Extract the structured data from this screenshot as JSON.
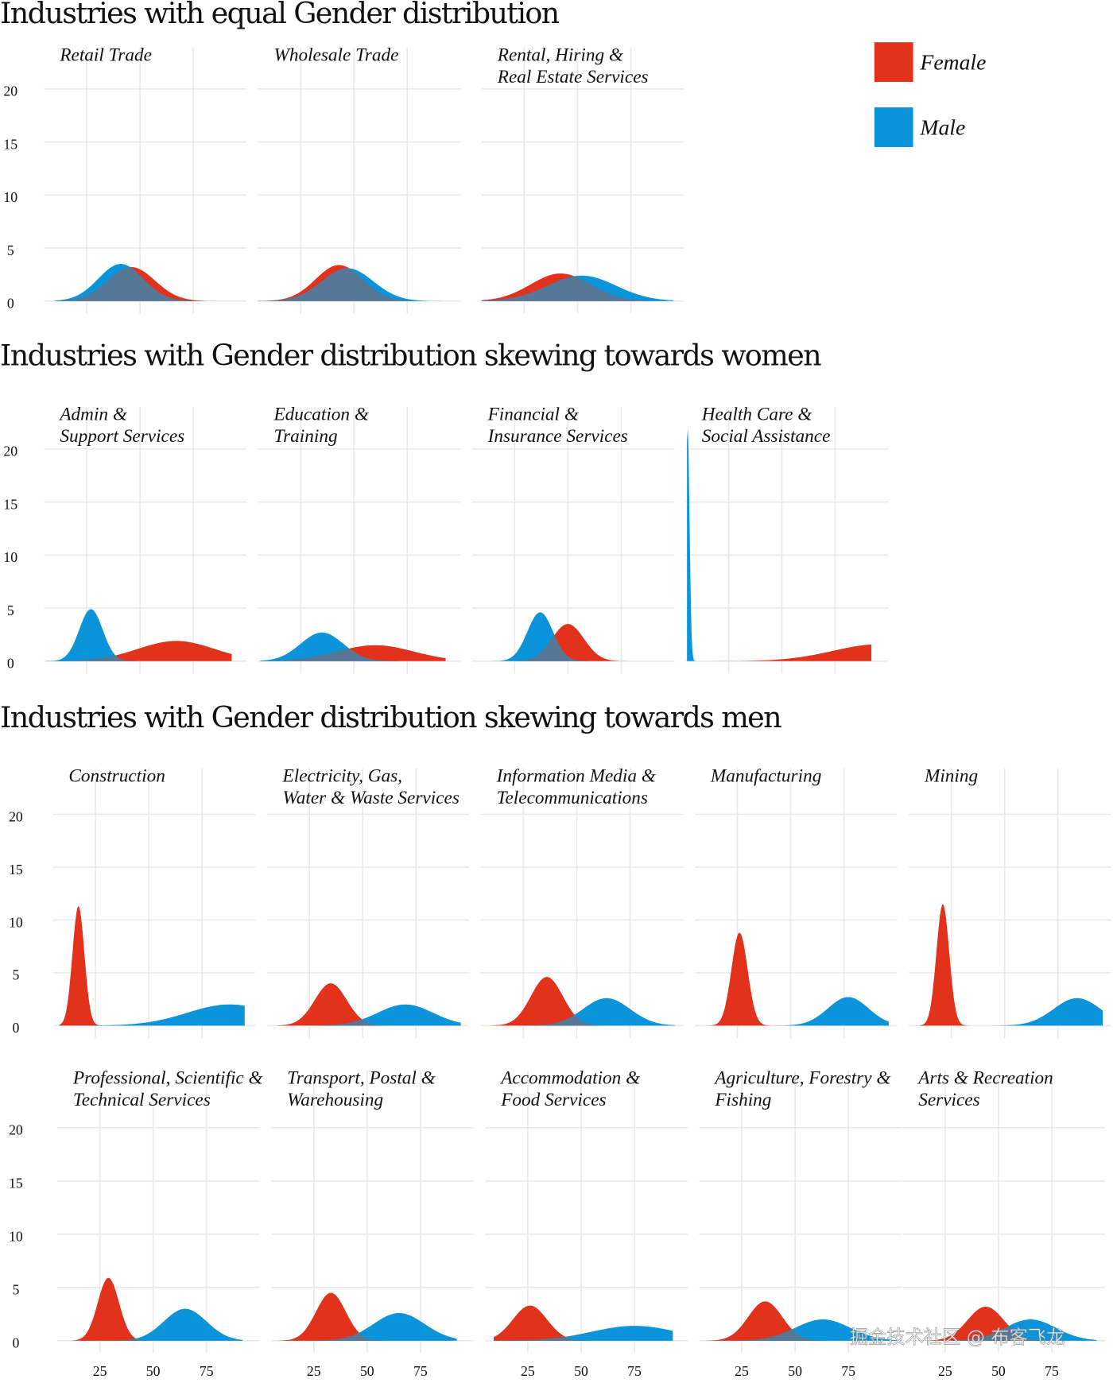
{
  "chart_data": {
    "type": "area",
    "xlabel": "",
    "ylabel": "",
    "xlim": [
      5,
      100
    ],
    "ylim": [
      0,
      20
    ],
    "x_ticks": [
      "25",
      "50",
      "75"
    ],
    "x_tick_values": [
      25,
      50,
      75
    ],
    "y_ticks": [
      "0",
      "5",
      "10",
      "15",
      "20"
    ],
    "y_tick_values": [
      0,
      5,
      10,
      15,
      20
    ],
    "grid": true,
    "legend": {
      "placement": "top-right",
      "items": [
        {
          "label": "Female",
          "color": "#e2321b"
        },
        {
          "label": "Male",
          "color": "#0b94da"
        }
      ],
      "overlap_color": "#567896"
    },
    "sections": [
      {
        "title": "Industries with equal Gender distribution",
        "panels": [
          {
            "label": [
              "Retail Trade"
            ],
            "female": {
              "mean": 46,
              "sd": 11,
              "peak": 3.2,
              "range": [
                10,
                88
              ]
            },
            "male": {
              "mean": 41,
              "sd": 10.5,
              "peak": 3.5,
              "range": [
                10,
                88
              ]
            }
          },
          {
            "label": [
              "Wholesale Trade"
            ],
            "female": {
              "mean": 43,
              "sd": 11,
              "peak": 3.4,
              "range": [
                5,
                92
              ]
            },
            "male": {
              "mean": 47,
              "sd": 12,
              "peak": 3.1,
              "range": [
                5,
                92
              ]
            }
          },
          {
            "label": [
              "Rental, Hiring &",
              "Real Estate Services"
            ],
            "female": {
              "mean": 42,
              "sd": 14,
              "peak": 2.6,
              "range": [
                5,
                95
              ]
            },
            "male": {
              "mean": 52,
              "sd": 16,
              "peak": 2.4,
              "range": [
                5,
                95
              ]
            }
          }
        ]
      },
      {
        "title": "Industries with Gender distribution skewing towards women",
        "panels": [
          {
            "label": [
              "Admin &",
              "Support Services"
            ],
            "female": {
              "mean": 67,
              "sd": 18,
              "peak": 1.9,
              "range": [
                6,
                93
              ]
            },
            "male": {
              "mean": 27,
              "sd": 5.5,
              "peak": 4.9,
              "range": [
                6,
                93
              ]
            }
          },
          {
            "label": [
              "Education &",
              "Training"
            ],
            "female": {
              "mean": 60,
              "sd": 18,
              "peak": 1.5,
              "range": [
                6,
                93
              ]
            },
            "male": {
              "mean": 35,
              "sd": 10,
              "peak": 2.7,
              "range": [
                6,
                93
              ]
            }
          },
          {
            "label": [
              "Financial &",
              "Insurance Services"
            ],
            "female": {
              "mean": 50,
              "sd": 7.5,
              "peak": 3.5,
              "range": [
                12,
                90
              ]
            },
            "male": {
              "mean": 37,
              "sd": 6,
              "peak": 4.6,
              "range": [
                12,
                90
              ]
            }
          },
          {
            "label": [
              "Health Care &",
              "Social Assistance"
            ],
            "female": {
              "mean": 96,
              "sd": 22,
              "peak": 1.6,
              "range": [
                5.5,
                92
              ]
            },
            "male": {
              "mean": 5.8,
              "sd": 0.9,
              "peak": 22,
              "range": [
                5.5,
                92
              ]
            }
          }
        ]
      },
      {
        "title": "Industries with Gender distribution skewing towards men",
        "panels": [
          {
            "label": [
              "Construction"
            ],
            "female": {
              "mean": 17,
              "sd": 2.8,
              "peak": 11.3,
              "range": [
                8,
                95
              ]
            },
            "male": {
              "mean": 88,
              "sd": 20,
              "peak": 2.0,
              "range": [
                8,
                95
              ]
            }
          },
          {
            "label": [
              "Electricity, Gas,",
              "Water & Waste Services"
            ],
            "female": {
              "mean": 35,
              "sd": 7.5,
              "peak": 4.0,
              "range": [
                10,
                96
              ]
            },
            "male": {
              "mean": 70,
              "sd": 13,
              "peak": 2.0,
              "range": [
                10,
                96
              ]
            }
          },
          {
            "label": [
              "Information Media &",
              "Telecommunications"
            ],
            "female": {
              "mean": 36,
              "sd": 7.5,
              "peak": 4.6,
              "range": [
                10,
                96
              ]
            },
            "male": {
              "mean": 64,
              "sd": 11,
              "peak": 2.6,
              "range": [
                10,
                96
              ]
            }
          },
          {
            "label": [
              "Manufacturing"
            ],
            "female": {
              "mean": 26,
              "sd": 3.8,
              "peak": 8.8,
              "range": [
                10,
                96
              ]
            },
            "male": {
              "mean": 77,
              "sd": 9.5,
              "peak": 2.7,
              "range": [
                10,
                96
              ]
            }
          },
          {
            "label": [
              "Mining"
            ],
            "female": {
              "mean": 21,
              "sd": 3,
              "peak": 11.5,
              "range": [
                10,
                96
              ]
            },
            "male": {
              "mean": 84,
              "sd": 11,
              "peak": 2.6,
              "range": [
                10,
                96
              ]
            }
          },
          {
            "label": [
              "Professional, Scientific &",
              "Technical Services"
            ],
            "female": {
              "mean": 29,
              "sd": 5,
              "peak": 5.9,
              "range": [
                12,
                92
              ]
            },
            "male": {
              "mean": 65,
              "sd": 10,
              "peak": 3.0,
              "range": [
                12,
                92
              ]
            }
          },
          {
            "label": [
              "Transport, Postal &",
              "Warehousing"
            ],
            "female": {
              "mean": 33,
              "sd": 7,
              "peak": 4.5,
              "range": [
                8,
                92
              ]
            },
            "male": {
              "mean": 65,
              "sd": 12,
              "peak": 2.6,
              "range": [
                8,
                92
              ]
            }
          },
          {
            "label": [
              "Accommodation &",
              "Food Services"
            ],
            "female": {
              "mean": 26,
              "sd": 8,
              "peak": 3.3,
              "range": [
                9,
                93
              ]
            },
            "male": {
              "mean": 75,
              "sd": 20,
              "peak": 1.4,
              "range": [
                9,
                93
              ]
            }
          },
          {
            "label": [
              "Agriculture, Forestry &",
              "Fishing"
            ],
            "female": {
              "mean": 36,
              "sd": 8,
              "peak": 3.7,
              "range": [
                8,
                100
              ]
            },
            "male": {
              "mean": 63,
              "sd": 13,
              "peak": 2.0,
              "range": [
                8,
                100
              ]
            }
          },
          {
            "label": [
              "Arts & Recreation",
              "Services"
            ],
            "female": {
              "mean": 44,
              "sd": 8.5,
              "peak": 3.2,
              "range": [
                8,
                96
              ]
            },
            "male": {
              "mean": 65,
              "sd": 12,
              "peak": 2.0,
              "range": [
                8,
                96
              ]
            }
          }
        ]
      }
    ]
  },
  "watermark": "掘金技术社区 @ 布客飞龙"
}
